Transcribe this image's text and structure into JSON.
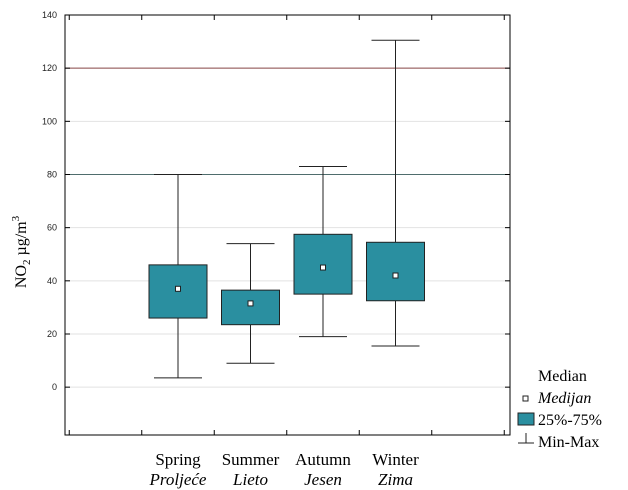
{
  "chart_data": {
    "type": "boxplot",
    "ylabel": "NO",
    "ylabel_sub": "2",
    "ylabel_unit": " µg/m",
    "ylabel_sup": "3",
    "ylim": [
      -18,
      140
    ],
    "yticks": [
      "0",
      "20",
      "40",
      "60",
      "80",
      "100",
      "120",
      "140"
    ],
    "yticks_values": [
      0,
      20,
      40,
      60,
      80,
      100,
      120,
      140
    ],
    "reference_lines": [
      80,
      120
    ],
    "categories": [
      {
        "label": "Spring",
        "sub": "Proljeće"
      },
      {
        "label": "Summer",
        "sub": "Lieto"
      },
      {
        "label": "Autumn",
        "sub": "Jesen"
      },
      {
        "label": "Winter",
        "sub": "Zima"
      }
    ],
    "series": [
      {
        "min": 3.5,
        "q1": 26,
        "median": 37,
        "q3": 46,
        "max": 80
      },
      {
        "min": 9,
        "q1": 23.5,
        "median": 31.5,
        "q3": 36.5,
        "max": 54
      },
      {
        "min": 19,
        "q1": 35,
        "median": 45,
        "q3": 57.5,
        "max": 83
      },
      {
        "min": 15.5,
        "q1": 32.5,
        "median": 42,
        "q3": 54.5,
        "max": 130.5
      }
    ],
    "box_color": "#2a8fa0",
    "legend": {
      "position": "right",
      "median": "Median",
      "median_sub": "Medijan",
      "iqr": "25%-75%",
      "range": "Min-Max"
    },
    "grid": true
  }
}
